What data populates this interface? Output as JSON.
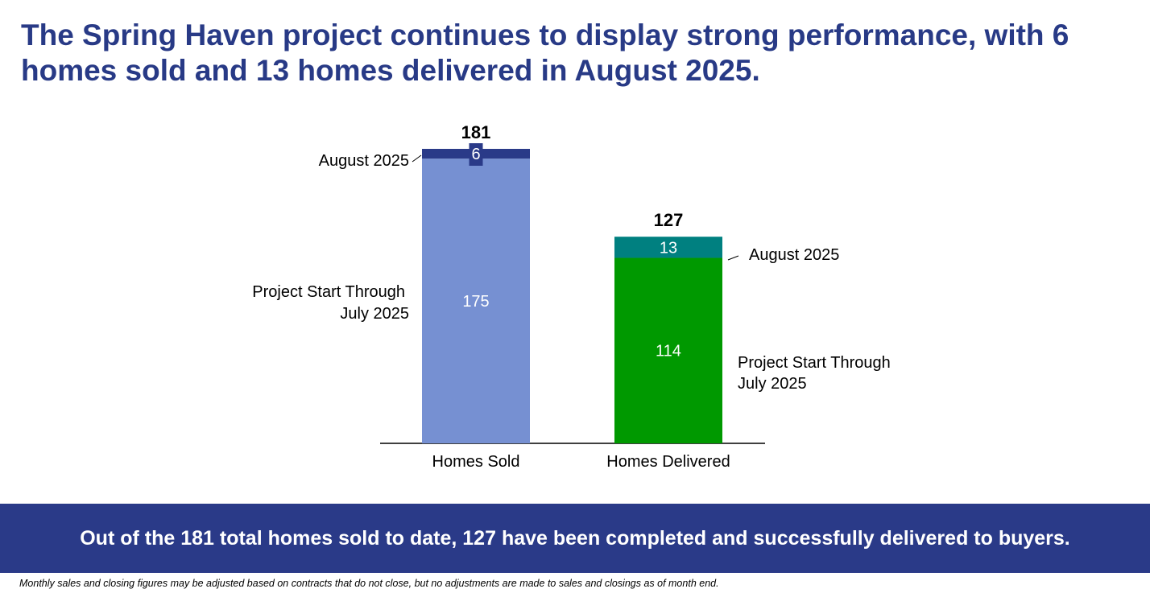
{
  "headline": "The Spring Haven project continues to display strong performance, with 6 homes sold and 13 homes delivered in August 2025.",
  "chart_data": {
    "type": "bar",
    "stacked": true,
    "categories": [
      "Homes Sold",
      "Homes Delivered"
    ],
    "series": [
      {
        "name": "Project Start Through July 2025",
        "values": [
          175,
          114
        ]
      },
      {
        "name": "August 2025",
        "values": [
          6,
          13
        ]
      }
    ],
    "totals": [
      181,
      127
    ],
    "segment_labels": [
      "Project Start Through July 2025",
      "August 2025"
    ],
    "colors": {
      "Homes Sold": [
        "#7690d2",
        "#2a3a88"
      ],
      "Homes Delivered": [
        "#009900",
        "#008080"
      ]
    },
    "ylim": [
      0,
      181
    ]
  },
  "banner": "Out of the 181 total homes sold to date, 127 have been completed and successfully delivered to buyers.",
  "footnote": "Monthly sales and closing figures may be adjusted based on contracts that do not close, but no adjustments are made to sales and closings as of month end."
}
